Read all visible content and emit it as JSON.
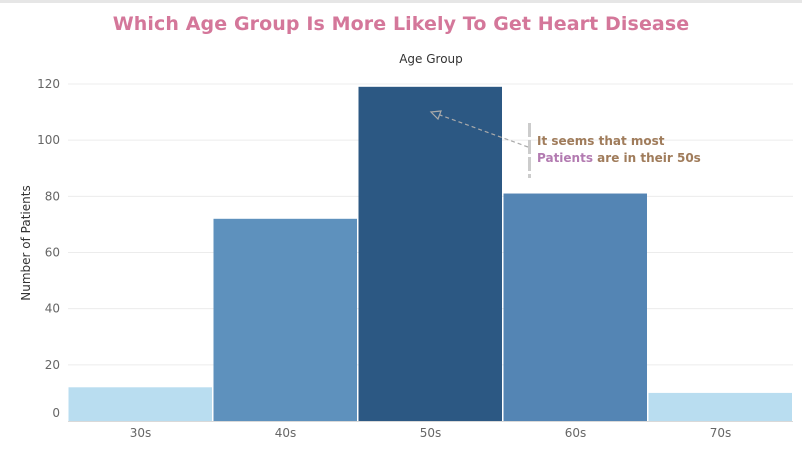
{
  "chart_data": {
    "type": "bar",
    "title": "Which Age Group Is More Likely To Get Heart Disease",
    "xlabel": "Age Group",
    "ylabel": "Number of Patients",
    "categories": [
      "30s",
      "40s",
      "50s",
      "60s",
      "70s"
    ],
    "values": [
      12,
      72,
      119,
      81,
      10
    ],
    "ylim": [
      0,
      120
    ],
    "yticks": [
      0,
      20,
      40,
      60,
      80,
      100,
      120
    ],
    "colors": [
      "#b9ddf0",
      "#5e91bd",
      "#2c5883",
      "#5485b4",
      "#b9ddf0"
    ],
    "grid": true,
    "annotation": {
      "line1": "It seems that most",
      "highlight": "Patients",
      "line2_rest": "are in their 50s",
      "target_category": "50s",
      "arrow_color": "#aaaaaa",
      "text_color": "#a07c5b",
      "highlight_color": "#b37bb1"
    }
  }
}
